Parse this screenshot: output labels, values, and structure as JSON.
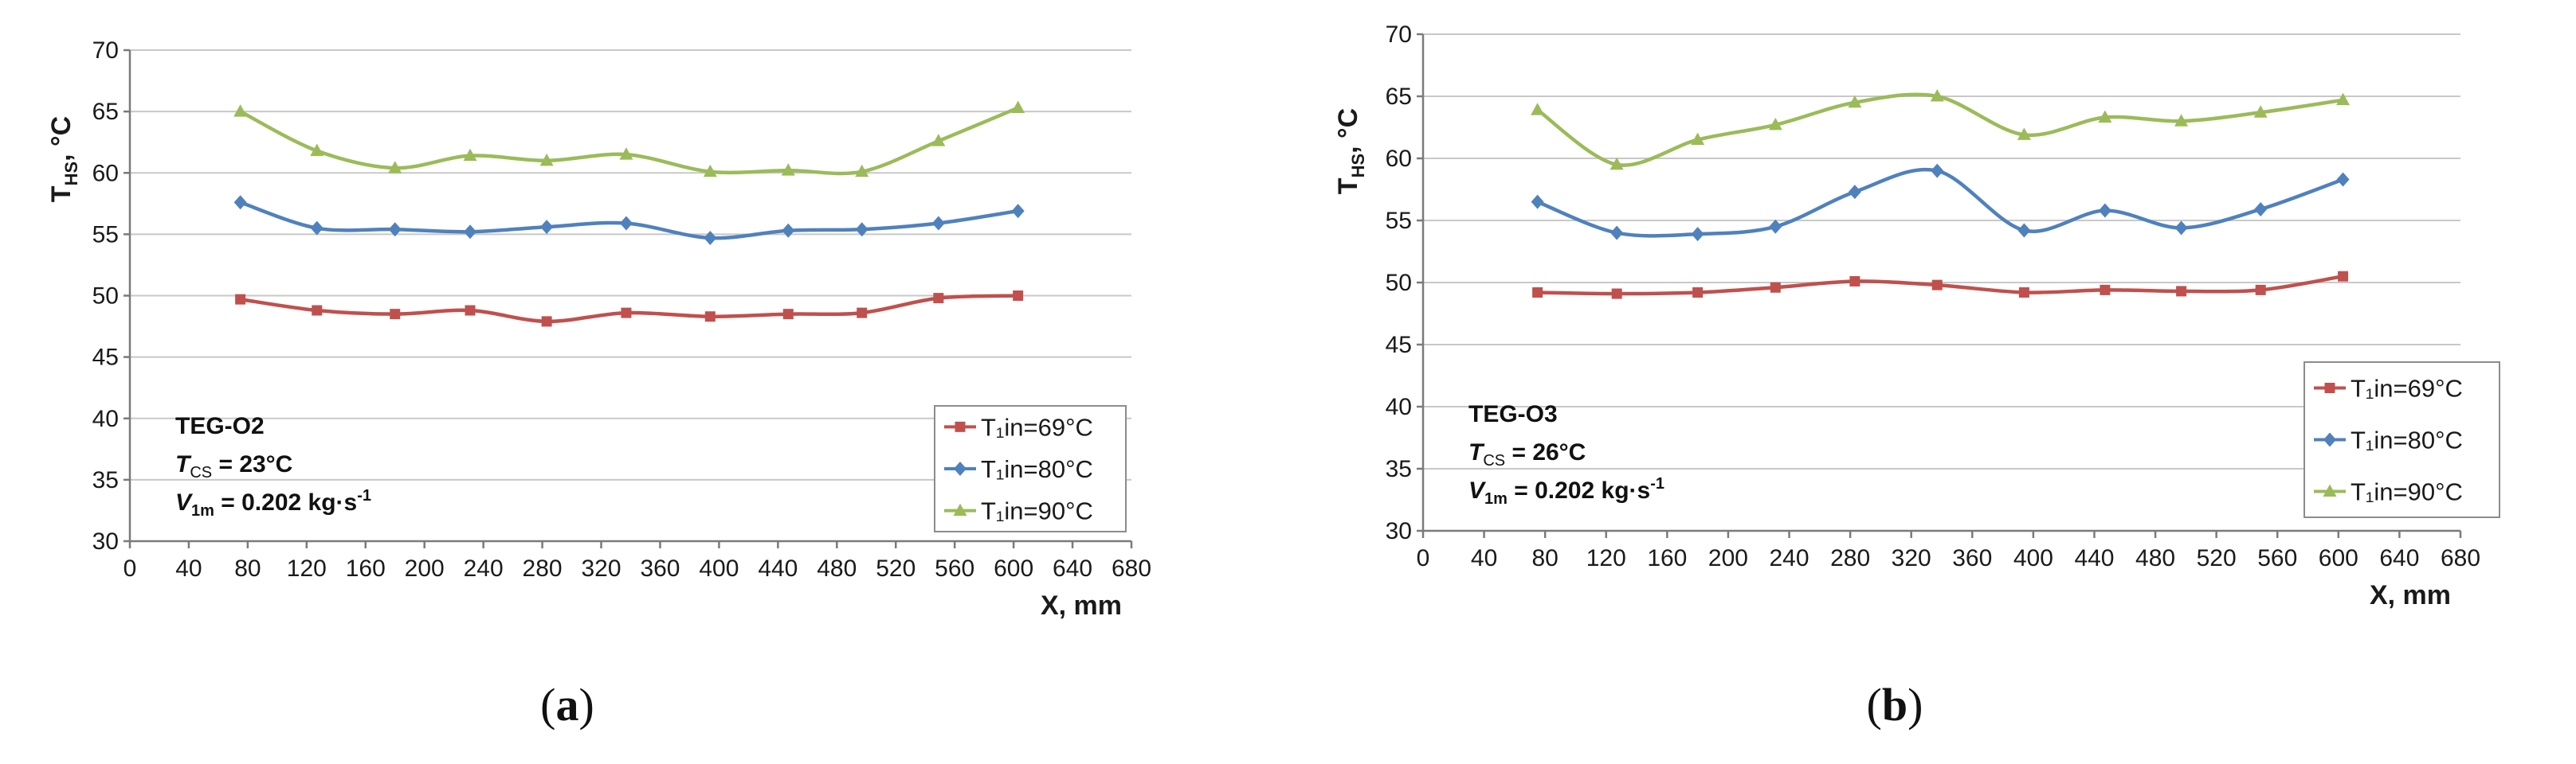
{
  "chart_data": [
    {
      "type": "line",
      "panel_label": "a",
      "xlabel": "X, mm",
      "ylabel_main": "T",
      "ylabel_sub": "HS",
      "ylabel_unit": ", °C",
      "xlim": [
        0,
        680
      ],
      "ylim": [
        30,
        70
      ],
      "x_ticks": [
        0,
        40,
        80,
        120,
        160,
        200,
        240,
        280,
        320,
        360,
        400,
        440,
        480,
        520,
        560,
        600,
        640,
        680
      ],
      "y_ticks": [
        30,
        35,
        40,
        45,
        50,
        55,
        60,
        65,
        70
      ],
      "grid": "horizontal",
      "legend_position": "bottom-right",
      "annotation": {
        "title": "TEG-O2",
        "line2_sym": "T",
        "line2_sub": "CS",
        "line2_rest": " = 23°C",
        "line3_sym": "V",
        "line3_sub": "1m",
        "line3_rest": " = 0.202 kg·s",
        "line3_sup": "-1"
      },
      "series": [
        {
          "name": "T₁in=69°C",
          "color": "#C0504D",
          "marker": "square",
          "x": [
            75,
            127,
            180,
            231,
            283,
            337,
            394,
            447,
            497,
            549,
            603
          ],
          "y": [
            49.7,
            48.8,
            48.5,
            48.8,
            47.9,
            48.6,
            48.3,
            48.5,
            48.6,
            49.8,
            50.0
          ]
        },
        {
          "name": "T₁in=80°C",
          "color": "#4F81BD",
          "marker": "diamond",
          "x": [
            75,
            127,
            180,
            231,
            283,
            337,
            394,
            447,
            497,
            549,
            603
          ],
          "y": [
            57.6,
            55.5,
            55.4,
            55.2,
            55.6,
            55.9,
            54.7,
            55.3,
            55.4,
            55.9,
            56.9
          ]
        },
        {
          "name": "T₁in=90°C",
          "color": "#9BBB59",
          "marker": "triangle",
          "x": [
            75,
            127,
            180,
            231,
            283,
            337,
            394,
            447,
            497,
            549,
            603
          ],
          "y": [
            65.0,
            61.8,
            60.4,
            61.4,
            61.0,
            61.5,
            60.1,
            60.2,
            60.1,
            62.6,
            65.3
          ]
        }
      ]
    },
    {
      "type": "line",
      "panel_label": "b",
      "xlabel": "X, mm",
      "ylabel_main": "T",
      "ylabel_sub": "HS",
      "ylabel_unit": ", °C",
      "xlim": [
        0,
        680
      ],
      "ylim": [
        30,
        70
      ],
      "x_ticks": [
        0,
        40,
        80,
        120,
        160,
        200,
        240,
        280,
        320,
        360,
        400,
        440,
        480,
        520,
        560,
        600,
        640,
        680
      ],
      "y_ticks": [
        30,
        35,
        40,
        45,
        50,
        55,
        60,
        65,
        70
      ],
      "grid": "horizontal",
      "legend_position": "right",
      "annotation": {
        "title": "TEG-O3",
        "line2_sym": "T",
        "line2_sub": "CS",
        "line2_rest": " = 26°C",
        "line3_sym": "V",
        "line3_sub": "1m",
        "line3_rest": " = 0.202 kg·s",
        "line3_sup": "-1"
      },
      "series": [
        {
          "name": "T₁in=69°C",
          "color": "#C0504D",
          "marker": "square",
          "x": [
            75,
            127,
            180,
            231,
            283,
            337,
            394,
            447,
            497,
            549,
            603
          ],
          "y": [
            49.2,
            49.1,
            49.2,
            49.6,
            50.1,
            49.8,
            49.2,
            49.4,
            49.3,
            49.4,
            50.5
          ]
        },
        {
          "name": "T₁in=80°C",
          "color": "#4F81BD",
          "marker": "diamond",
          "x": [
            75,
            127,
            180,
            231,
            283,
            337,
            394,
            447,
            497,
            549,
            603
          ],
          "y": [
            56.5,
            54.0,
            53.9,
            54.5,
            57.3,
            59.0,
            54.2,
            55.8,
            54.4,
            55.9,
            58.3
          ]
        },
        {
          "name": "T₁in=90°C",
          "color": "#9BBB59",
          "marker": "triangle",
          "x": [
            75,
            127,
            180,
            231,
            283,
            337,
            394,
            447,
            497,
            549,
            603
          ],
          "y": [
            63.9,
            59.5,
            61.5,
            62.7,
            64.5,
            65.0,
            61.9,
            63.3,
            63.0,
            63.7,
            64.7
          ]
        }
      ]
    }
  ]
}
